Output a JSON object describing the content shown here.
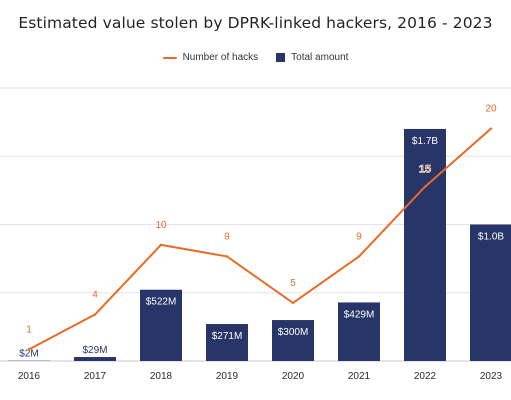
{
  "chart_data": {
    "type": "bar",
    "title": "Estimated value stolen by DPRK-linked hackers, 2016 - 2023",
    "categories": [
      "2016",
      "2017",
      "2018",
      "2019",
      "2020",
      "2021",
      "2022",
      "2023"
    ],
    "series": [
      {
        "name": "Total amount",
        "kind": "bar",
        "values_usd_millions": [
          2,
          29,
          522,
          271,
          300,
          429,
          1700,
          1000
        ],
        "data_labels": [
          "$2M",
          "$29M",
          "$522M",
          "$271M",
          "$300M",
          "$429M",
          "$1.7B",
          "$1.0B"
        ],
        "color": "#283568"
      },
      {
        "name": "Number of hacks",
        "kind": "line",
        "values": [
          1,
          4,
          10,
          9,
          5,
          9,
          15,
          20
        ],
        "data_labels": [
          "1",
          "4",
          "10",
          "9",
          "5",
          "9",
          "15",
          "20"
        ],
        "color": "#e86a25"
      }
    ],
    "bar_axis_range_usd_millions": [
      0,
      2000
    ],
    "line_axis_range": [
      0,
      23.5
    ],
    "grid": true,
    "legend_position": "top-center"
  }
}
